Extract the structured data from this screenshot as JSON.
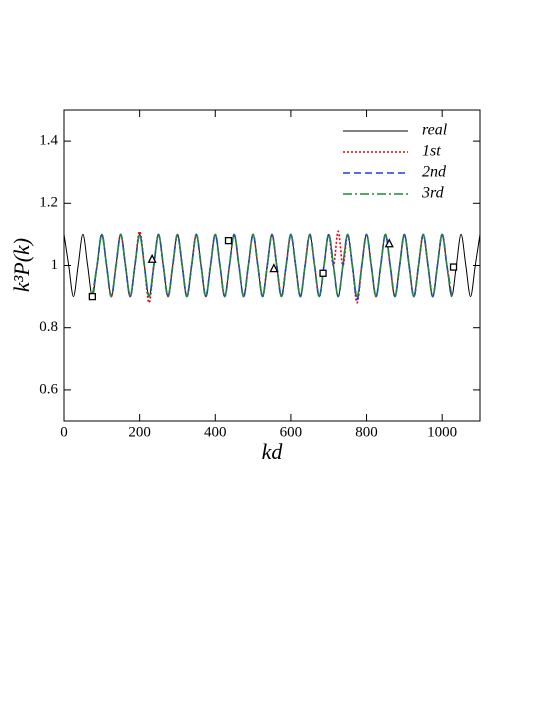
{
  "chart_data": {
    "type": "line",
    "xlabel": "kd",
    "ylabel": "k³P(k)",
    "xlim": [
      0,
      1100
    ],
    "ylim": [
      0.5,
      1.5
    ],
    "xticks": [
      0,
      200,
      400,
      600,
      800,
      1000
    ],
    "yticks": [
      0.6,
      0.8,
      1,
      1.2,
      1.4
    ],
    "legend": "upper right",
    "x": [
      0,
      12.5,
      25,
      37.5,
      50,
      62.5,
      75,
      87.5,
      100,
      112.5,
      125,
      137.5,
      150,
      162.5,
      175,
      187.5,
      200,
      212.5,
      225,
      237.5,
      250,
      262.5,
      275,
      287.5,
      300,
      312.5,
      325,
      337.5,
      350,
      362.5,
      375,
      387.5,
      400,
      412.5,
      425,
      437.5,
      450,
      462.5,
      475,
      487.5,
      500,
      512.5,
      525,
      537.5,
      550,
      562.5,
      575,
      587.5,
      600,
      612.5,
      625,
      637.5,
      650,
      662.5,
      675,
      687.5,
      700,
      712.5,
      725,
      737.5,
      750,
      762.5,
      775,
      787.5,
      800,
      812.5,
      825,
      837.5,
      850,
      862.5,
      875,
      887.5,
      900,
      912.5,
      925,
      937.5,
      950,
      962.5,
      975,
      987.5,
      1000,
      1012.5,
      1025,
      1037.5,
      1050,
      1062.5,
      1075,
      1087.5,
      1100
    ],
    "series": [
      {
        "name": "real",
        "color": "#000000",
        "linestyle": "solid",
        "values": [
          1.1,
          1,
          0.9,
          1,
          1.1,
          1,
          0.9,
          1,
          1.1,
          1,
          0.9,
          1,
          1.1,
          1,
          0.9,
          1,
          1.1,
          1,
          0.9,
          1,
          1.1,
          1,
          0.9,
          1,
          1.1,
          1,
          0.9,
          1,
          1.1,
          1,
          0.9,
          1,
          1.1,
          1,
          0.9,
          1,
          1.1,
          1,
          0.9,
          1,
          1.1,
          1,
          0.9,
          1,
          1.1,
          1,
          0.9,
          1,
          1.1,
          1,
          0.9,
          1,
          1.1,
          1,
          0.9,
          1,
          1.1,
          1,
          0.9,
          1,
          1.1,
          1,
          0.9,
          1,
          1.1,
          1,
          0.9,
          1,
          1.1,
          1,
          0.9,
          1,
          1.1,
          1,
          0.9,
          1,
          1.1,
          1,
          0.9,
          1,
          1.1,
          1,
          0.9,
          1,
          1.1,
          1,
          0.9,
          1,
          1.1
        ]
      },
      {
        "name": "1st",
        "color": "#e8000b",
        "linestyle": "dotted",
        "values": [
          null,
          null,
          null,
          null,
          null,
          null,
          0.9,
          1,
          1.1,
          1,
          0.9,
          1,
          1.1,
          1,
          0.9,
          1,
          1.11,
          1,
          0.88,
          1,
          1.1,
          1,
          0.9,
          1,
          1.1,
          1,
          0.9,
          1,
          1.1,
          1,
          0.9,
          1,
          1.1,
          1,
          0.9,
          1,
          1.1,
          1,
          0.9,
          1,
          1.1,
          1,
          0.9,
          1,
          1.1,
          1,
          0.9,
          1,
          1.1,
          1,
          0.9,
          1,
          1.1,
          1,
          0.9,
          1,
          1.1,
          1,
          1.11,
          1,
          1.1,
          1,
          0.88,
          1,
          1.1,
          1,
          0.9,
          1,
          1.1,
          1,
          0.9,
          1,
          1.1,
          1,
          0.9,
          1,
          1.1,
          1,
          0.9,
          1,
          1.1,
          1,
          0.9,
          null,
          null,
          null,
          null,
          null,
          null
        ]
      },
      {
        "name": "2nd",
        "color": "#1f3de0",
        "linestyle": "dashed",
        "values": [
          null,
          null,
          null,
          null,
          null,
          null,
          0.9,
          1,
          1.1,
          1,
          0.9,
          1,
          1.1,
          1,
          0.9,
          1,
          1.1,
          1,
          0.9,
          1,
          1.1,
          1,
          0.9,
          1,
          1.1,
          1,
          0.9,
          1,
          1.1,
          1,
          0.9,
          1,
          1.1,
          1,
          0.9,
          1,
          1.1,
          1,
          0.9,
          1,
          1.1,
          1,
          0.9,
          1,
          1.1,
          1,
          0.9,
          1,
          1.1,
          1,
          0.9,
          1,
          1.1,
          1,
          0.9,
          1,
          1.1,
          1,
          0.9,
          1,
          1.1,
          1,
          0.89,
          1,
          1.1,
          1,
          0.9,
          1,
          1.1,
          1,
          0.9,
          1,
          1.1,
          1,
          0.9,
          1,
          1.1,
          1,
          0.9,
          1,
          1.1,
          1,
          0.9,
          null,
          null,
          null,
          null,
          null,
          null
        ]
      },
      {
        "name": "3rd",
        "color": "#1a8a3a",
        "linestyle": "dashdot",
        "values": [
          null,
          null,
          null,
          null,
          null,
          null,
          0.9,
          1,
          1.1,
          1,
          0.9,
          1,
          1.1,
          1,
          0.9,
          1,
          1.1,
          1,
          0.9,
          1,
          1.1,
          1,
          0.9,
          1,
          1.1,
          1,
          0.9,
          1,
          1.1,
          1,
          0.9,
          1,
          1.1,
          1,
          0.9,
          1,
          1.1,
          1,
          0.9,
          1,
          1.1,
          1,
          0.9,
          1,
          1.1,
          1,
          0.9,
          1,
          1.1,
          1,
          0.9,
          1,
          1.1,
          1,
          0.9,
          1,
          1.1,
          1,
          0.9,
          1,
          1.1,
          1,
          0.9,
          1,
          1.1,
          1,
          0.9,
          1,
          1.1,
          1,
          0.9,
          1,
          1.1,
          1,
          0.9,
          1,
          1.1,
          1,
          0.9,
          1,
          1.1,
          1,
          0.9,
          null,
          null,
          null,
          null,
          null,
          null
        ]
      }
    ],
    "markers": [
      {
        "shape": "square",
        "x": [
          75,
          435,
          685,
          1030
        ],
        "y": [
          0.9,
          1.08,
          0.975,
          0.995
        ]
      },
      {
        "shape": "triangle",
        "x": [
          233,
          555,
          860
        ],
        "y": [
          1.02,
          0.99,
          1.07
        ]
      }
    ]
  }
}
